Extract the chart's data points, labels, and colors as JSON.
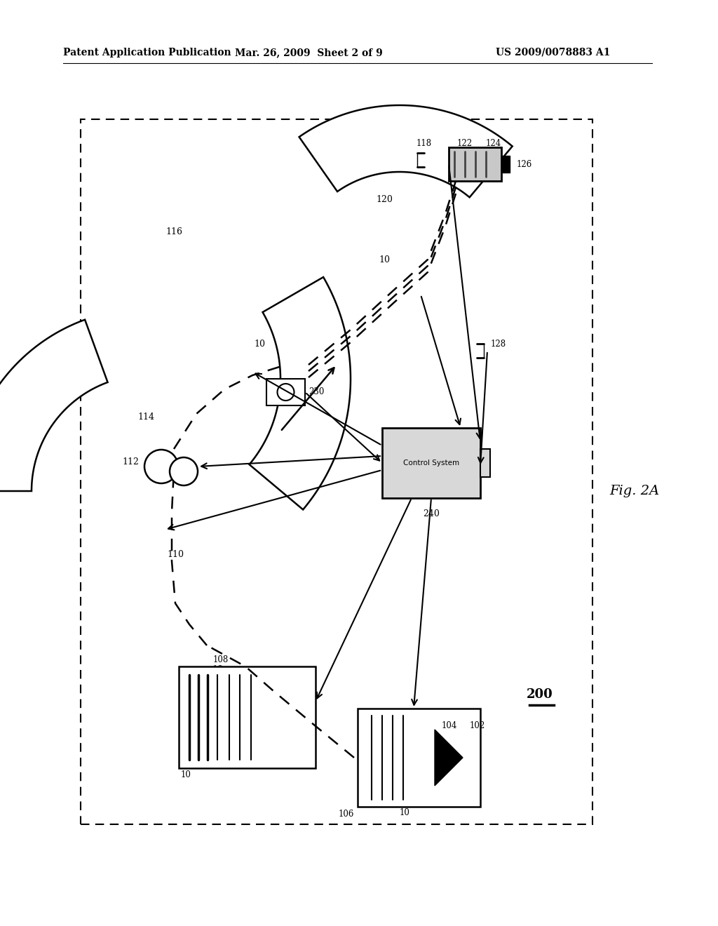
{
  "bg_color": "#ffffff",
  "header_left": "Patent Application Publication",
  "header_mid": "Mar. 26, 2009  Sheet 2 of 9",
  "header_right": "US 2009/0078883 A1",
  "fig_label": "Fig. 2A",
  "system_label": "200"
}
